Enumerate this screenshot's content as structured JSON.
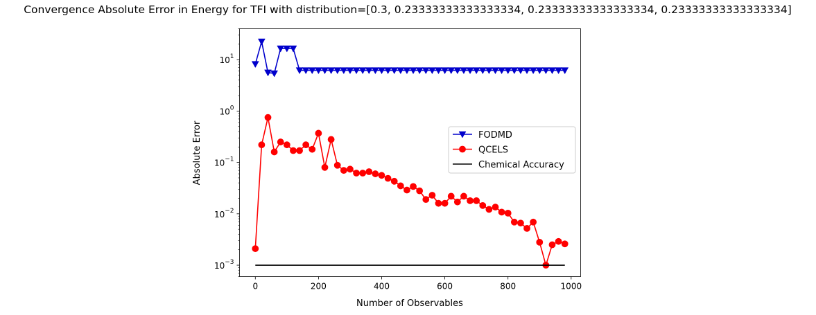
{
  "chart_data": {
    "type": "line",
    "title": "Convergence Absolute Error in Energy for TFI with distribution=[0.3, 0.23333333333333334, 0.23333333333333334, 0.23333333333333334]",
    "xlabel": "Number of Observables",
    "ylabel": "Absolute Error",
    "xlim": [
      -50,
      1030
    ],
    "ylim": [
      0.0006,
      40
    ],
    "yscale": "log",
    "grid": false,
    "legend_position": "center-right",
    "x_ticks": [
      {
        "value": 0,
        "label": "0"
      },
      {
        "value": 200,
        "label": "200"
      },
      {
        "value": 400,
        "label": "400"
      },
      {
        "value": 600,
        "label": "600"
      },
      {
        "value": 800,
        "label": "800"
      },
      {
        "value": 1000,
        "label": "1000"
      }
    ],
    "y_ticks": [
      {
        "value": 0.001,
        "base": "10",
        "exp": "−3"
      },
      {
        "value": 0.01,
        "base": "10",
        "exp": "−2"
      },
      {
        "value": 0.1,
        "base": "10",
        "exp": "−1"
      },
      {
        "value": 1,
        "base": "10",
        "exp": "0"
      },
      {
        "value": 10,
        "base": "10",
        "exp": "1"
      }
    ],
    "x": [
      0,
      20,
      40,
      60,
      80,
      100,
      120,
      140,
      160,
      180,
      200,
      220,
      240,
      260,
      280,
      300,
      320,
      340,
      360,
      380,
      400,
      420,
      440,
      460,
      480,
      500,
      520,
      540,
      560,
      580,
      600,
      620,
      640,
      660,
      680,
      700,
      720,
      740,
      760,
      780,
      800,
      820,
      840,
      860,
      880,
      900,
      920,
      940,
      960,
      980
    ],
    "series": [
      {
        "name": "FODMD",
        "color": "#0000cc",
        "marker": "triangle-down",
        "values": [
          8.2,
          22.5,
          5.6,
          5.4,
          16.5,
          16.5,
          16.5,
          6.2,
          6.2,
          6.2,
          6.2,
          6.2,
          6.2,
          6.2,
          6.2,
          6.2,
          6.2,
          6.2,
          6.2,
          6.2,
          6.2,
          6.2,
          6.2,
          6.2,
          6.2,
          6.2,
          6.2,
          6.2,
          6.2,
          6.2,
          6.2,
          6.2,
          6.2,
          6.2,
          6.2,
          6.2,
          6.2,
          6.2,
          6.2,
          6.2,
          6.2,
          6.2,
          6.2,
          6.2,
          6.2,
          6.2,
          6.2,
          6.2,
          6.2,
          6.2
        ]
      },
      {
        "name": "QCELS",
        "color": "#ff0000",
        "marker": "circle",
        "values": [
          0.0021,
          0.22,
          0.75,
          0.16,
          0.25,
          0.22,
          0.17,
          0.17,
          0.22,
          0.18,
          0.37,
          0.08,
          0.28,
          0.088,
          0.07,
          0.074,
          0.062,
          0.062,
          0.066,
          0.06,
          0.056,
          0.049,
          0.043,
          0.035,
          0.029,
          0.034,
          0.028,
          0.019,
          0.023,
          0.016,
          0.016,
          0.022,
          0.017,
          0.022,
          0.018,
          0.018,
          0.0145,
          0.0122,
          0.0135,
          0.0108,
          0.0103,
          0.0069,
          0.0066,
          0.0052,
          0.0069,
          0.0028,
          0.001,
          0.0025,
          0.0029,
          0.0026
        ]
      },
      {
        "name": "Chemical Accuracy",
        "color": "#000000",
        "marker": "none",
        "values": [
          0.001,
          0.001,
          0.001,
          0.001,
          0.001,
          0.001,
          0.001,
          0.001,
          0.001,
          0.001,
          0.001,
          0.001,
          0.001,
          0.001,
          0.001,
          0.001,
          0.001,
          0.001,
          0.001,
          0.001,
          0.001,
          0.001,
          0.001,
          0.001,
          0.001,
          0.001,
          0.001,
          0.001,
          0.001,
          0.001,
          0.001,
          0.001,
          0.001,
          0.001,
          0.001,
          0.001,
          0.001,
          0.001,
          0.001,
          0.001,
          0.001,
          0.001,
          0.001,
          0.001,
          0.001,
          0.001,
          0.001,
          0.001,
          0.001,
          0.001
        ]
      }
    ]
  }
}
